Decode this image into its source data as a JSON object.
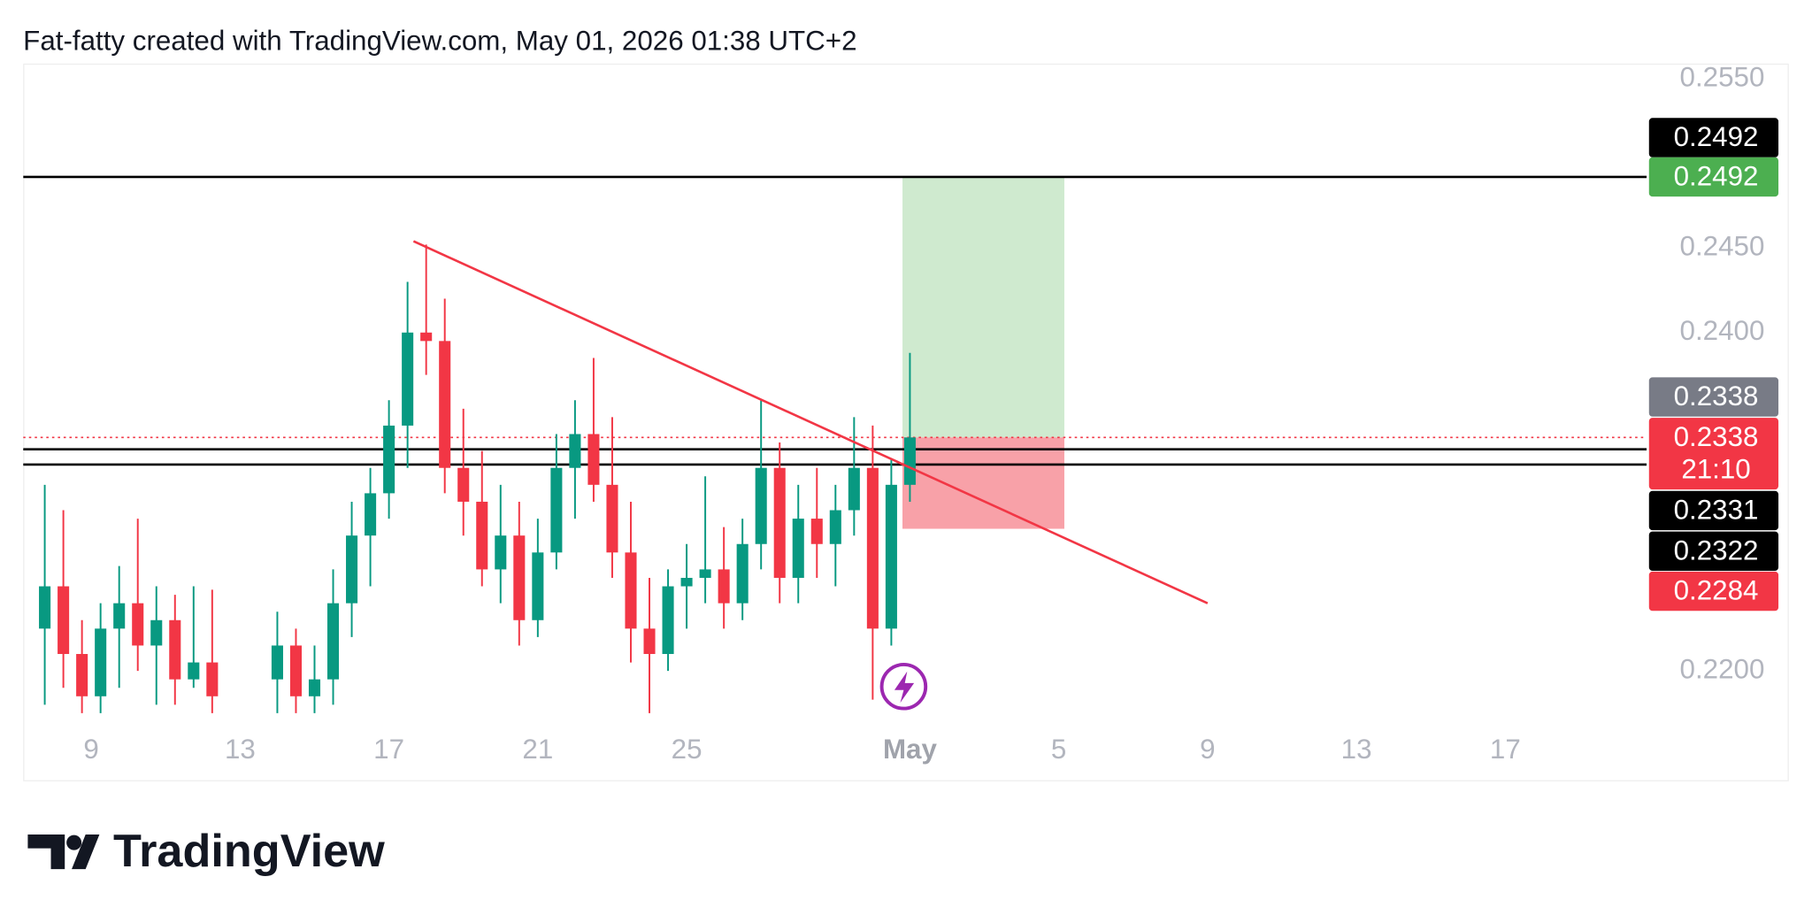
{
  "chart_data": {
    "type": "candlestick",
    "title": "Fat-fatty created with TradingView.com, May 01, 2026 01:38 UTC+2",
    "x": [
      7.75,
      8.25,
      8.75,
      9.25,
      9.75,
      10.25,
      10.75,
      11.25,
      11.75,
      12.25,
      14.0,
      14.5,
      15.0,
      15.5,
      16.0,
      16.5,
      17.0,
      17.5,
      18.0,
      18.5,
      19.0,
      19.5,
      20.0,
      20.5,
      21.0,
      21.5,
      22.0,
      22.5,
      23.0,
      23.5,
      24.0,
      24.5,
      25.0,
      25.5,
      26.0,
      26.5,
      27.0,
      27.5,
      28.0,
      28.5,
      29.0,
      29.5,
      30.0,
      30.5,
      31.0
    ],
    "open": [
      0.2225,
      0.225,
      0.221,
      0.2185,
      0.2225,
      0.224,
      0.2215,
      0.223,
      0.2195,
      0.2205,
      0.2195,
      0.2215,
      0.2185,
      0.2195,
      0.224,
      0.228,
      0.2305,
      0.2345,
      0.24,
      0.2395,
      0.232,
      0.23,
      0.226,
      0.228,
      0.223,
      0.227,
      0.232,
      0.234,
      0.231,
      0.227,
      0.2225,
      0.221,
      0.225,
      0.2255,
      0.226,
      0.224,
      0.2275,
      0.232,
      0.2255,
      0.229,
      0.2275,
      0.2295,
      0.232,
      0.2225,
      0.231
    ],
    "high": [
      0.231,
      0.2295,
      0.223,
      0.224,
      0.2262,
      0.229,
      0.225,
      0.2245,
      0.225,
      0.2248,
      0.2235,
      0.2225,
      0.2215,
      0.226,
      0.23,
      0.232,
      0.236,
      0.243,
      0.2452,
      0.242,
      0.2355,
      0.233,
      0.231,
      0.23,
      0.229,
      0.234,
      0.236,
      0.2385,
      0.235,
      0.23,
      0.2255,
      0.226,
      0.2275,
      0.2315,
      0.2285,
      0.229,
      0.236,
      0.2335,
      0.231,
      0.232,
      0.231,
      0.235,
      0.2345,
      0.2325,
      0.2388
    ],
    "low": [
      0.218,
      0.219,
      0.2175,
      0.2175,
      0.219,
      0.22,
      0.218,
      0.218,
      0.219,
      0.2175,
      0.2175,
      0.2175,
      0.2175,
      0.218,
      0.222,
      0.225,
      0.229,
      0.232,
      0.2375,
      0.2305,
      0.228,
      0.225,
      0.224,
      0.2215,
      0.222,
      0.226,
      0.229,
      0.23,
      0.2255,
      0.2205,
      0.2175,
      0.22,
      0.2225,
      0.224,
      0.2225,
      0.223,
      0.226,
      0.224,
      0.224,
      0.2255,
      0.225,
      0.228,
      0.2183,
      0.2215,
      0.23
    ],
    "close": [
      0.225,
      0.221,
      0.2185,
      0.2225,
      0.224,
      0.2215,
      0.223,
      0.2195,
      0.2205,
      0.2185,
      0.2215,
      0.2185,
      0.2195,
      0.224,
      0.228,
      0.2305,
      0.2345,
      0.24,
      0.2395,
      0.232,
      0.23,
      0.226,
      0.228,
      0.223,
      0.227,
      0.232,
      0.234,
      0.231,
      0.227,
      0.2225,
      0.221,
      0.225,
      0.2255,
      0.226,
      0.224,
      0.2275,
      0.232,
      0.2255,
      0.229,
      0.2275,
      0.2295,
      0.232,
      0.2225,
      0.231,
      0.2338
    ],
    "up_color": "#089981",
    "down_color": "#f23645",
    "xlim": [
      7.17,
      50.8
    ],
    "ylim": [
      0.2173,
      0.2559
    ],
    "xticks": [
      9,
      13,
      17,
      21,
      25,
      {
        "value": 31,
        "label": "May"
      },
      {
        "value": 35,
        "label": "5"
      },
      {
        "value": 39,
        "label": "9"
      },
      {
        "value": 43,
        "label": "13"
      },
      {
        "value": 47,
        "label": "17"
      }
    ],
    "yticks": [
      {
        "value": 0.255,
        "label": "0.2550"
      },
      {
        "value": 0.245,
        "label": "0.2450"
      },
      {
        "value": 0.24,
        "label": "0.2400"
      },
      {
        "value": 0.22,
        "label": "0.2200"
      }
    ],
    "levels": [
      {
        "value": 0.2492,
        "color": "#000000"
      },
      {
        "value": 0.2331,
        "color": "#000000"
      },
      {
        "value": 0.2322,
        "color": "#000000"
      }
    ],
    "price_line": {
      "value": 0.2338,
      "color": "#f23645",
      "countdown": "21:10"
    },
    "position": {
      "x": [
        30.8,
        35.15
      ],
      "entry": 0.2338,
      "target": 0.2492,
      "stop": 0.2284,
      "target_color": "#cfeacf",
      "stop_color": "#f8a1a8",
      "entry_label_color": "#787b86"
    },
    "trendline": {
      "x": [
        17.66,
        39.0
      ],
      "y": [
        0.2454,
        0.224
      ],
      "color": "#f23645"
    },
    "logo": "TradingView"
  }
}
